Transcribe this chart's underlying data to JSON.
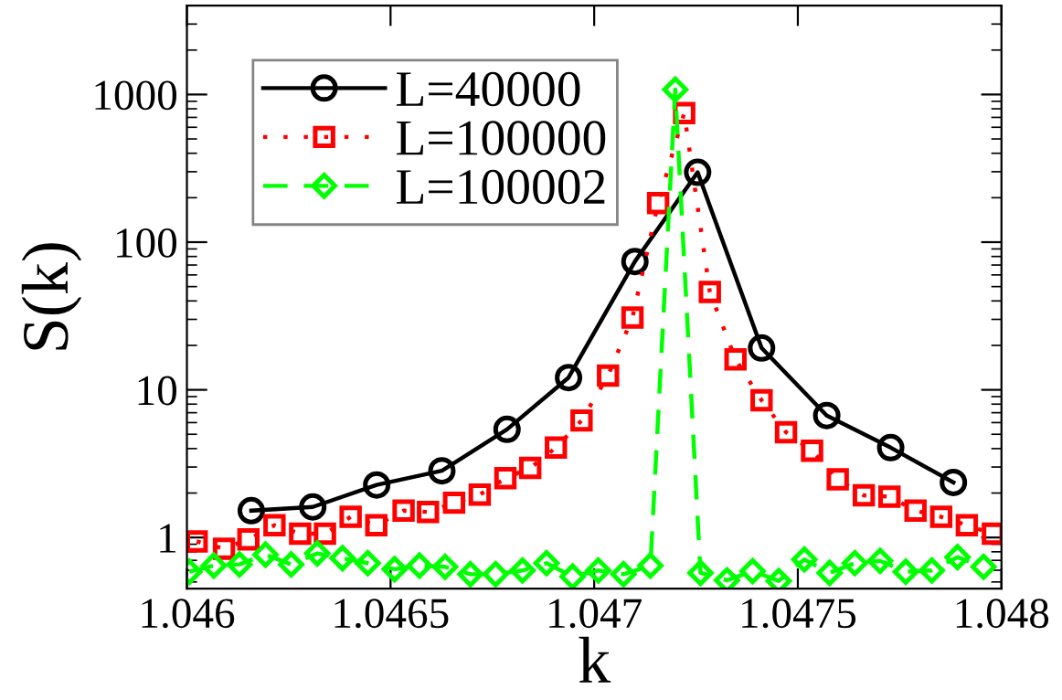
{
  "chart_data": {
    "type": "line",
    "xlabel": "k",
    "ylabel": "S(k)",
    "log": "y",
    "xlim": [
      1.046,
      1.048
    ],
    "xticks": [
      1.046,
      1.0465,
      1.047,
      1.0475,
      1.048
    ],
    "ylim": [
      0.45,
      4000
    ],
    "yticks": [
      1,
      10,
      100,
      1000
    ],
    "grid": false,
    "legend": "top left",
    "series": [
      {
        "name": "L=40000",
        "color": "#000000",
        "marker": "circle",
        "line_style": "solid",
        "x": [
          1.046158,
          1.046309,
          1.046466,
          1.046626,
          1.046786,
          1.046937,
          1.0471,
          1.047254,
          1.047411,
          1.047571,
          1.047728,
          1.047882
        ],
        "values": [
          1.52,
          1.61,
          2.27,
          2.83,
          5.4,
          12.1,
          74,
          297,
          19.2,
          6.7,
          4.06,
          2.36
        ]
      },
      {
        "name": "L=100000",
        "color": "#ff0000",
        "marker": "square",
        "line_style": "dotted",
        "x": [
          1.046024,
          1.046091,
          1.046151,
          1.046215,
          1.046278,
          1.046339,
          1.046402,
          1.046465,
          1.046532,
          1.046592,
          1.046656,
          1.046719,
          1.046782,
          1.046843,
          1.046906,
          1.046969,
          1.047034,
          1.047094,
          1.047157,
          1.047221,
          1.047284,
          1.047347,
          1.047411,
          1.047471,
          1.047535,
          1.047598,
          1.047662,
          1.047725,
          1.047789,
          1.047852,
          1.047915,
          1.047979
        ],
        "values": [
          0.94,
          0.84,
          0.97,
          1.21,
          1.06,
          1.06,
          1.38,
          1.21,
          1.52,
          1.49,
          1.72,
          1.95,
          2.52,
          2.96,
          4.06,
          6.2,
          12.5,
          30.9,
          184,
          749,
          46,
          16.1,
          8.5,
          5.16,
          3.87,
          2.48,
          1.93,
          1.89,
          1.52,
          1.38,
          1.21,
          1.06
        ]
      },
      {
        "name": "L=100002",
        "color": "#00ff00",
        "marker": "diamond",
        "line_style": "dashed",
        "x": [
          1.046006,
          1.046066,
          1.046129,
          1.046193,
          1.046256,
          1.04632,
          1.046382,
          1.046444,
          1.04651,
          1.046571,
          1.046634,
          1.046696,
          1.046758,
          1.046824,
          1.046883,
          1.046947,
          1.04701,
          1.047072,
          1.047138,
          1.047199,
          1.047261,
          1.047326,
          1.047389,
          1.047453,
          1.047516,
          1.047578,
          1.04764,
          1.047702,
          1.047765,
          1.047829,
          1.047892,
          1.047956
        ],
        "values": [
          0.586,
          0.645,
          0.657,
          0.766,
          0.657,
          0.78,
          0.724,
          0.67,
          0.61,
          0.645,
          0.633,
          0.564,
          0.564,
          0.598,
          0.67,
          0.544,
          0.598,
          0.564,
          0.645,
          1080,
          0.576,
          0.513,
          0.592,
          0.508,
          0.71,
          0.576,
          0.67,
          0.695,
          0.586,
          0.598,
          0.736,
          0.633
        ]
      }
    ]
  }
}
